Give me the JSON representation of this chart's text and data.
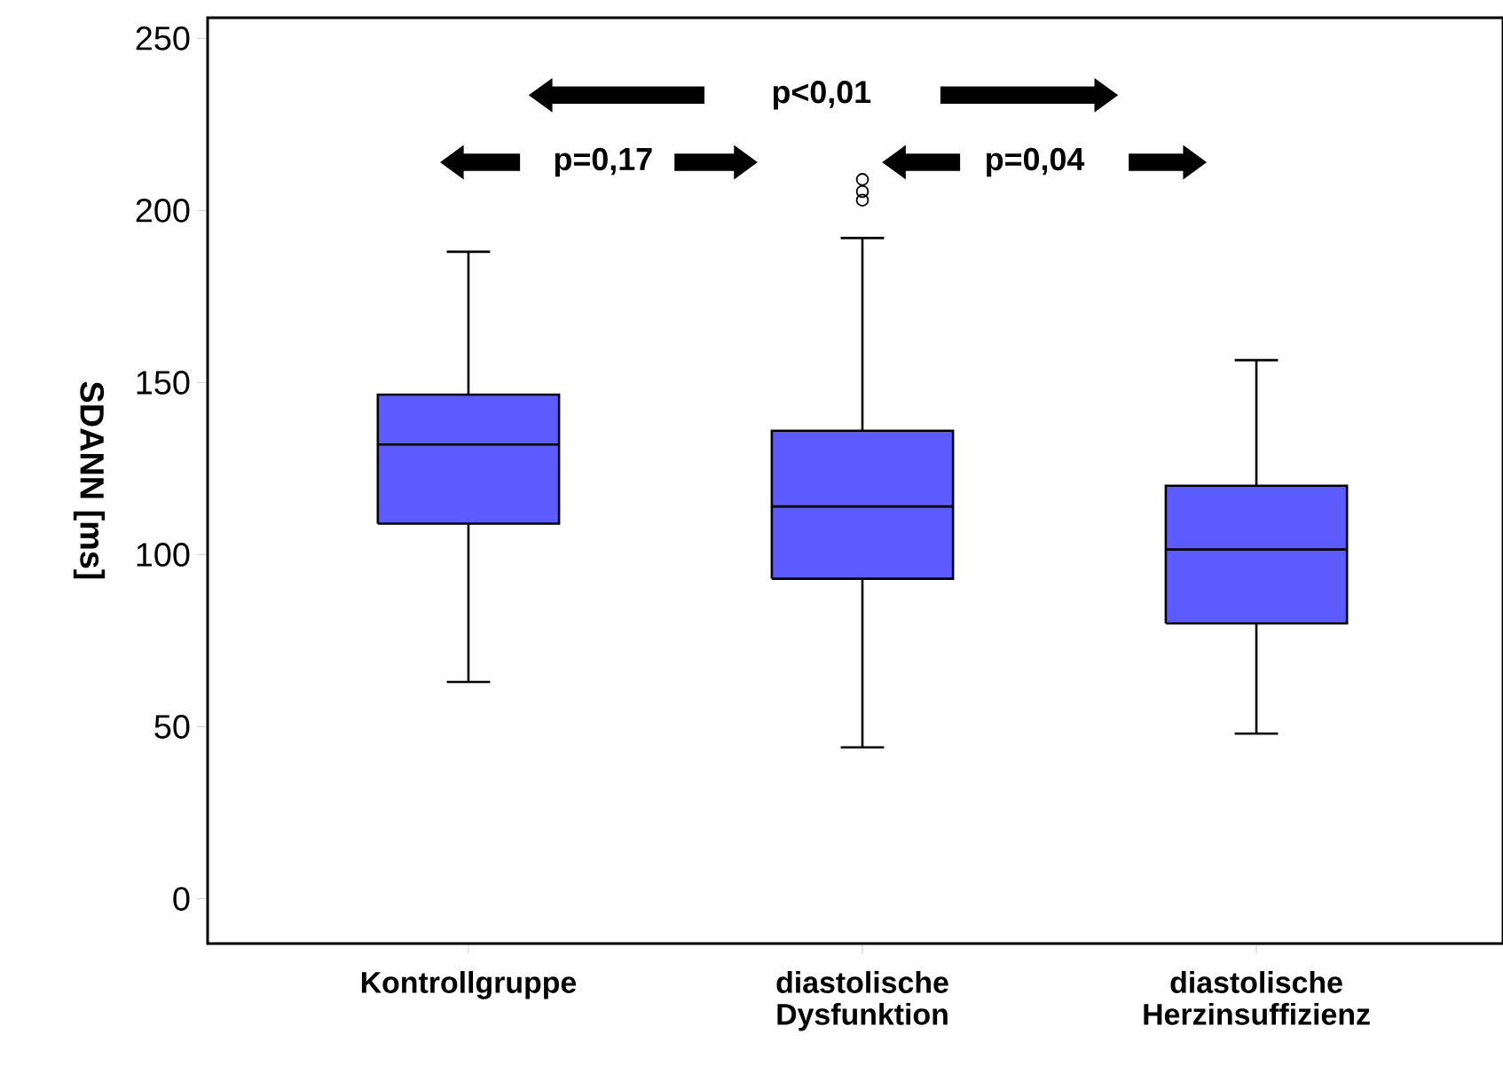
{
  "chart_data": {
    "type": "box",
    "ylabel": "SDANN [ms]",
    "categories": [
      "Kontrollgruppe",
      "diastolische Dysfunktion",
      "diastolische Herzinsuffizienz"
    ],
    "color": "#5b5bff",
    "boxes": [
      {
        "low": 63,
        "q1": 109,
        "median": 132,
        "q3": 146.5,
        "high": 188
      },
      {
        "low": 44,
        "q1": 93,
        "median": 114,
        "q3": 136,
        "high": 192,
        "outliers": [
          209,
          205.5,
          203
        ]
      },
      {
        "low": 48,
        "q1": 80,
        "median": 101.5,
        "q3": 120,
        "high": 156.5
      }
    ],
    "ylim": [
      -13,
      256
    ],
    "yticks": [
      0,
      50,
      100,
      150,
      200,
      250
    ],
    "annotations": [
      "p<0,01",
      "p=0,17",
      "p=0,04"
    ],
    "grid": false
  }
}
